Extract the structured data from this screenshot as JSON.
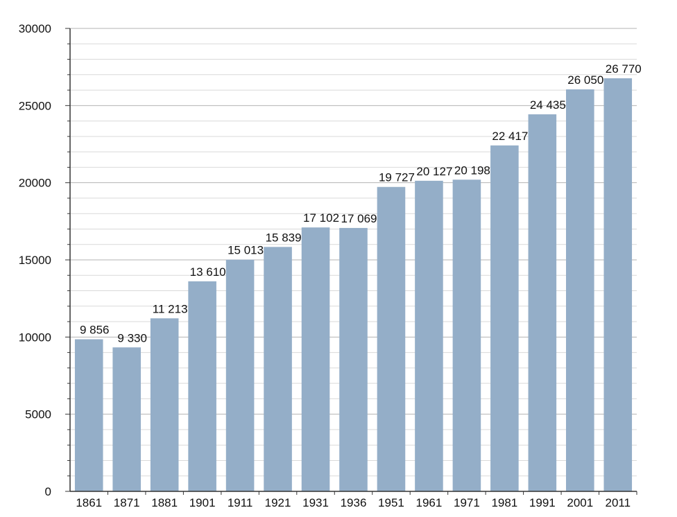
{
  "chart_data": {
    "type": "bar",
    "title": "",
    "xlabel": "",
    "ylabel": "",
    "categories": [
      "1861",
      "1871",
      "1881",
      "1901",
      "1911",
      "1921",
      "1931",
      "1936",
      "1951",
      "1961",
      "1971",
      "1981",
      "1991",
      "2001",
      "2011"
    ],
    "values": [
      9856,
      9330,
      11213,
      13610,
      15013,
      15839,
      17102,
      17069,
      19727,
      20127,
      20198,
      22417,
      24435,
      26050,
      26770
    ],
    "value_labels": [
      "9 856",
      "9 330",
      "11 213",
      "13 610",
      "15 013",
      "15 839",
      "17 102",
      "17 069",
      "19 727",
      "20 127",
      "20 198",
      "22 417",
      "24 435",
      "26 050",
      "26 770"
    ],
    "ylim": [
      0,
      30000
    ],
    "y_ticks": [
      0,
      5000,
      10000,
      15000,
      20000,
      25000,
      30000
    ],
    "y_tick_labels": [
      "0",
      "5000",
      "10000",
      "15000",
      "20000",
      "25000",
      "30000"
    ],
    "grid": true,
    "legend": "none",
    "colors": {
      "bar": "#94aec8",
      "major_grid": "#b3b3b3",
      "minor_grid": "#d9d9d9",
      "axis": "#333333"
    }
  }
}
